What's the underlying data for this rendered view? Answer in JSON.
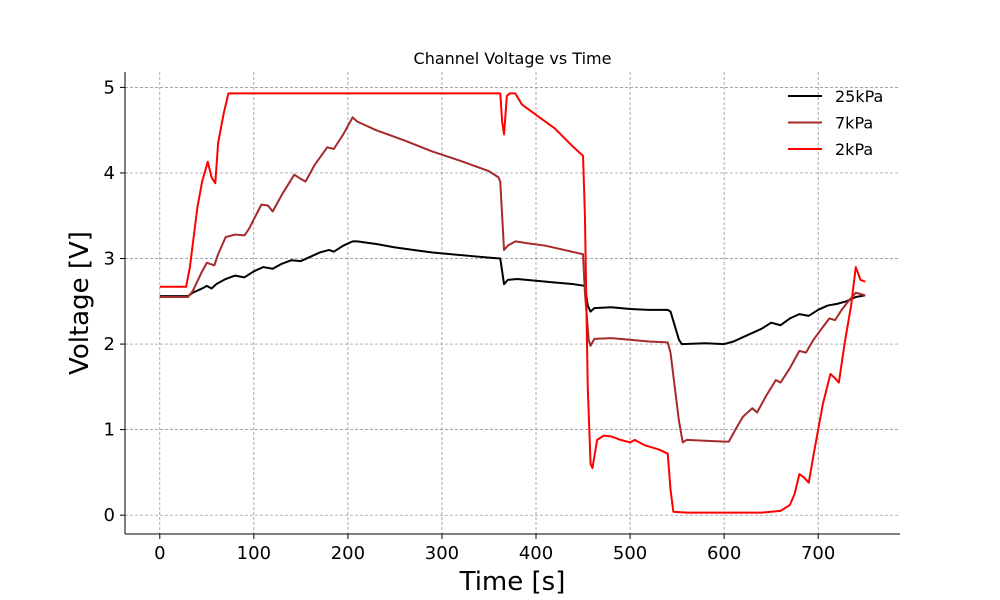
{
  "chart_data": {
    "type": "line",
    "title": "Channel Voltage vs Time",
    "xlabel": "Time [s]",
    "ylabel": "Voltage [V]",
    "xlim": [
      -37,
      787
    ],
    "ylim": [
      -0.22,
      5.18
    ],
    "xticks": [
      0,
      100,
      200,
      300,
      400,
      500,
      600,
      700
    ],
    "yticks": [
      0,
      1,
      2,
      3,
      4,
      5
    ],
    "grid": true,
    "legend_position": "top-right",
    "series": [
      {
        "name": "25kPa",
        "color": "#000000",
        "points": [
          [
            0,
            2.56
          ],
          [
            30,
            2.56
          ],
          [
            35,
            2.6
          ],
          [
            45,
            2.65
          ],
          [
            50,
            2.68
          ],
          [
            55,
            2.65
          ],
          [
            60,
            2.7
          ],
          [
            70,
            2.76
          ],
          [
            80,
            2.8
          ],
          [
            90,
            2.78
          ],
          [
            100,
            2.85
          ],
          [
            110,
            2.9
          ],
          [
            120,
            2.88
          ],
          [
            130,
            2.94
          ],
          [
            140,
            2.98
          ],
          [
            150,
            2.97
          ],
          [
            160,
            3.02
          ],
          [
            170,
            3.07
          ],
          [
            180,
            3.1
          ],
          [
            185,
            3.08
          ],
          [
            195,
            3.15
          ],
          [
            205,
            3.2
          ],
          [
            210,
            3.2
          ],
          [
            230,
            3.17
          ],
          [
            250,
            3.13
          ],
          [
            270,
            3.1
          ],
          [
            290,
            3.07
          ],
          [
            310,
            3.05
          ],
          [
            330,
            3.03
          ],
          [
            350,
            3.01
          ],
          [
            362,
            3.0
          ],
          [
            366,
            2.7
          ],
          [
            370,
            2.75
          ],
          [
            380,
            2.76
          ],
          [
            400,
            2.74
          ],
          [
            420,
            2.72
          ],
          [
            440,
            2.7
          ],
          [
            452,
            2.68
          ],
          [
            455,
            2.45
          ],
          [
            458,
            2.38
          ],
          [
            462,
            2.42
          ],
          [
            480,
            2.43
          ],
          [
            500,
            2.41
          ],
          [
            520,
            2.4
          ],
          [
            540,
            2.4
          ],
          [
            543,
            2.38
          ],
          [
            552,
            2.05
          ],
          [
            555,
            2.0
          ],
          [
            580,
            2.01
          ],
          [
            600,
            2.0
          ],
          [
            610,
            2.03
          ],
          [
            620,
            2.08
          ],
          [
            630,
            2.13
          ],
          [
            640,
            2.18
          ],
          [
            650,
            2.25
          ],
          [
            660,
            2.22
          ],
          [
            670,
            2.3
          ],
          [
            680,
            2.35
          ],
          [
            690,
            2.33
          ],
          [
            700,
            2.4
          ],
          [
            710,
            2.45
          ],
          [
            720,
            2.47
          ],
          [
            730,
            2.5
          ],
          [
            740,
            2.55
          ],
          [
            750,
            2.57
          ]
        ]
      },
      {
        "name": "7kPa",
        "color": "#a52a2a",
        "points": [
          [
            0,
            2.55
          ],
          [
            30,
            2.55
          ],
          [
            35,
            2.62
          ],
          [
            45,
            2.85
          ],
          [
            50,
            2.95
          ],
          [
            58,
            2.92
          ],
          [
            62,
            3.05
          ],
          [
            70,
            3.25
          ],
          [
            80,
            3.28
          ],
          [
            90,
            3.27
          ],
          [
            95,
            3.35
          ],
          [
            108,
            3.63
          ],
          [
            115,
            3.62
          ],
          [
            120,
            3.55
          ],
          [
            130,
            3.75
          ],
          [
            143,
            3.98
          ],
          [
            150,
            3.93
          ],
          [
            155,
            3.9
          ],
          [
            165,
            4.1
          ],
          [
            178,
            4.3
          ],
          [
            185,
            4.28
          ],
          [
            195,
            4.45
          ],
          [
            205,
            4.65
          ],
          [
            210,
            4.6
          ],
          [
            230,
            4.5
          ],
          [
            260,
            4.38
          ],
          [
            290,
            4.25
          ],
          [
            320,
            4.14
          ],
          [
            350,
            4.02
          ],
          [
            360,
            3.95
          ],
          [
            362,
            3.9
          ],
          [
            366,
            3.1
          ],
          [
            370,
            3.15
          ],
          [
            378,
            3.2
          ],
          [
            390,
            3.18
          ],
          [
            410,
            3.15
          ],
          [
            430,
            3.1
          ],
          [
            450,
            3.05
          ],
          [
            452,
            2.6
          ],
          [
            456,
            2.05
          ],
          [
            458,
            1.98
          ],
          [
            462,
            2.06
          ],
          [
            480,
            2.07
          ],
          [
            500,
            2.05
          ],
          [
            520,
            2.03
          ],
          [
            540,
            2.02
          ],
          [
            543,
            1.9
          ],
          [
            552,
            1.1
          ],
          [
            556,
            0.85
          ],
          [
            560,
            0.88
          ],
          [
            580,
            0.87
          ],
          [
            600,
            0.86
          ],
          [
            605,
            0.86
          ],
          [
            612,
            1.0
          ],
          [
            620,
            1.15
          ],
          [
            630,
            1.25
          ],
          [
            635,
            1.2
          ],
          [
            645,
            1.4
          ],
          [
            655,
            1.58
          ],
          [
            660,
            1.55
          ],
          [
            670,
            1.72
          ],
          [
            680,
            1.92
          ],
          [
            687,
            1.9
          ],
          [
            695,
            2.05
          ],
          [
            705,
            2.2
          ],
          [
            712,
            2.3
          ],
          [
            718,
            2.28
          ],
          [
            725,
            2.4
          ],
          [
            732,
            2.5
          ],
          [
            740,
            2.6
          ],
          [
            750,
            2.57
          ]
        ]
      },
      {
        "name": "2kPa",
        "color": "#ff0000",
        "points": [
          [
            0,
            2.67
          ],
          [
            28,
            2.67
          ],
          [
            32,
            2.9
          ],
          [
            40,
            3.6
          ],
          [
            45,
            3.9
          ],
          [
            51,
            4.13
          ],
          [
            55,
            3.95
          ],
          [
            59,
            3.88
          ],
          [
            62,
            4.35
          ],
          [
            68,
            4.7
          ],
          [
            73,
            4.93
          ],
          [
            100,
            4.93
          ],
          [
            200,
            4.93
          ],
          [
            300,
            4.93
          ],
          [
            362,
            4.93
          ],
          [
            364,
            4.6
          ],
          [
            366,
            4.45
          ],
          [
            369,
            4.9
          ],
          [
            372,
            4.93
          ],
          [
            378,
            4.93
          ],
          [
            385,
            4.8
          ],
          [
            400,
            4.68
          ],
          [
            420,
            4.52
          ],
          [
            440,
            4.3
          ],
          [
            450,
            4.2
          ],
          [
            452,
            3.5
          ],
          [
            455,
            1.5
          ],
          [
            458,
            0.6
          ],
          [
            460,
            0.55
          ],
          [
            465,
            0.88
          ],
          [
            472,
            0.93
          ],
          [
            480,
            0.92
          ],
          [
            490,
            0.88
          ],
          [
            500,
            0.85
          ],
          [
            505,
            0.88
          ],
          [
            515,
            0.82
          ],
          [
            530,
            0.77
          ],
          [
            540,
            0.72
          ],
          [
            543,
            0.3
          ],
          [
            546,
            0.04
          ],
          [
            560,
            0.03
          ],
          [
            600,
            0.03
          ],
          [
            640,
            0.03
          ],
          [
            660,
            0.05
          ],
          [
            670,
            0.12
          ],
          [
            675,
            0.25
          ],
          [
            680,
            0.48
          ],
          [
            685,
            0.44
          ],
          [
            690,
            0.38
          ],
          [
            695,
            0.7
          ],
          [
            705,
            1.3
          ],
          [
            713,
            1.65
          ],
          [
            718,
            1.6
          ],
          [
            722,
            1.55
          ],
          [
            728,
            2.0
          ],
          [
            735,
            2.45
          ],
          [
            740,
            2.9
          ],
          [
            745,
            2.75
          ],
          [
            750,
            2.73
          ]
        ]
      }
    ]
  }
}
